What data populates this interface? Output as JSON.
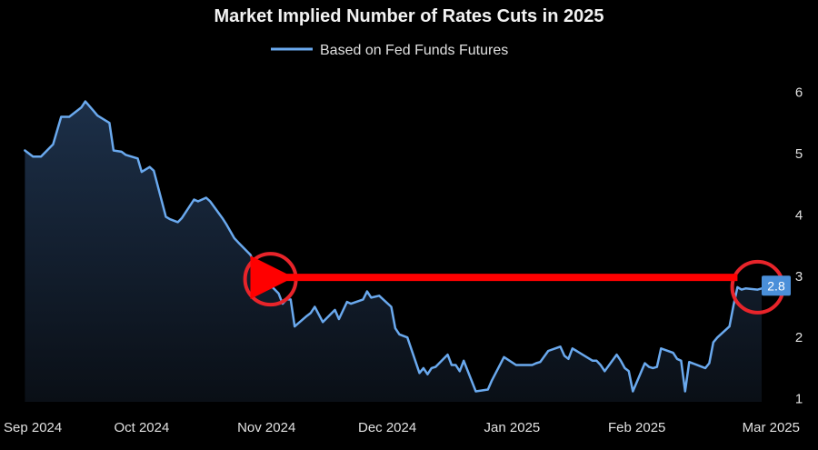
{
  "chart_data": {
    "type": "area",
    "title": "Market Implied Number of Rates Cuts in 2025",
    "xlabel": "",
    "ylabel": "",
    "x_tick_labels": [
      "Sep 2024",
      "Oct 2024",
      "Nov 2024",
      "Dec 2024",
      "Jan 2025",
      "Feb 2025",
      "Mar 2025"
    ],
    "y_ticks": [
      1,
      2,
      3,
      4,
      5,
      6
    ],
    "ylim": [
      0.95,
      6.2
    ],
    "grid": false,
    "y_axis_side": "right",
    "legend": {
      "position": "top-center"
    },
    "series": [
      {
        "name": "Based on Fed Funds Futures",
        "color": "#6aa9ee",
        "fill_top": "#1c2f48",
        "fill_bottom": "#0a0f16",
        "x": [
          "2024-09-02",
          "2024-09-04",
          "2024-09-06",
          "2024-09-09",
          "2024-09-11",
          "2024-09-13",
          "2024-09-16",
          "2024-09-17",
          "2024-09-19",
          "2024-09-20",
          "2024-09-23",
          "2024-09-24",
          "2024-09-26",
          "2024-09-27",
          "2024-09-30",
          "2024-10-01",
          "2024-10-03",
          "2024-10-04",
          "2024-10-07",
          "2024-10-08",
          "2024-10-10",
          "2024-10-11",
          "2024-10-14",
          "2024-10-15",
          "2024-10-17",
          "2024-10-18",
          "2024-10-21",
          "2024-10-22",
          "2024-10-24",
          "2024-10-25",
          "2024-10-28",
          "2024-10-29",
          "2024-10-30",
          "2024-10-31",
          "2024-11-01",
          "2024-11-04",
          "2024-11-05",
          "2024-11-06",
          "2024-11-07",
          "2024-11-08",
          "2024-11-11",
          "2024-11-12",
          "2024-11-13",
          "2024-11-15",
          "2024-11-18",
          "2024-11-19",
          "2024-11-21",
          "2024-11-22",
          "2024-11-25",
          "2024-11-26",
          "2024-11-27",
          "2024-11-29",
          "2024-12-02",
          "2024-12-03",
          "2024-12-04",
          "2024-12-06",
          "2024-12-09",
          "2024-12-10",
          "2024-12-11",
          "2024-12-12",
          "2024-12-13",
          "2024-12-16",
          "2024-12-17",
          "2024-12-18",
          "2024-12-19",
          "2024-12-20",
          "2024-12-23",
          "2024-12-26",
          "2024-12-27",
          "2024-12-30",
          "2025-01-02",
          "2025-01-03",
          "2025-01-06",
          "2025-01-07",
          "2025-01-08",
          "2025-01-10",
          "2025-01-13",
          "2025-01-14",
          "2025-01-15",
          "2025-01-16",
          "2025-01-17",
          "2025-01-21",
          "2025-01-22",
          "2025-01-23",
          "2025-01-24",
          "2025-01-27",
          "2025-01-28",
          "2025-01-29",
          "2025-01-30",
          "2025-01-31",
          "2025-02-03",
          "2025-02-04",
          "2025-02-05",
          "2025-02-06",
          "2025-02-07",
          "2025-02-10",
          "2025-02-11",
          "2025-02-12",
          "2025-02-13",
          "2025-02-14",
          "2025-02-18",
          "2025-02-19",
          "2025-02-20",
          "2025-02-21",
          "2025-02-24",
          "2025-02-25",
          "2025-02-26",
          "2025-02-27",
          "2025-02-28",
          "2025-03-03",
          "2025-03-04"
        ],
        "values": [
          5.05,
          4.95,
          4.95,
          5.15,
          5.6,
          5.6,
          5.75,
          5.85,
          5.7,
          5.62,
          5.5,
          5.05,
          5.03,
          4.98,
          4.92,
          4.7,
          4.78,
          4.72,
          3.97,
          3.93,
          3.88,
          3.95,
          4.25,
          4.22,
          4.28,
          4.22,
          3.95,
          3.85,
          3.62,
          3.55,
          3.35,
          3.2,
          3.05,
          2.97,
          2.92,
          2.72,
          2.55,
          2.62,
          2.62,
          2.18,
          2.35,
          2.4,
          2.5,
          2.25,
          2.45,
          2.3,
          2.58,
          2.55,
          2.62,
          2.75,
          2.65,
          2.68,
          2.5,
          2.15,
          2.05,
          2.0,
          1.42,
          1.5,
          1.4,
          1.5,
          1.52,
          1.72,
          1.55,
          1.55,
          1.45,
          1.62,
          1.12,
          1.15,
          1.3,
          1.68,
          1.55,
          1.55,
          1.55,
          1.58,
          1.6,
          1.78,
          1.85,
          1.7,
          1.65,
          1.82,
          1.78,
          1.62,
          1.62,
          1.55,
          1.45,
          1.72,
          1.62,
          1.5,
          1.45,
          1.12,
          1.58,
          1.52,
          1.5,
          1.52,
          1.82,
          1.75,
          1.65,
          1.62,
          1.12,
          1.6,
          1.5,
          1.58,
          1.92,
          2.0,
          2.18,
          2.52,
          2.82,
          2.78,
          2.8,
          2.78,
          2.8
        ],
        "last_value_label": "2.8"
      }
    ],
    "annotations": [
      {
        "type": "circle",
        "color": "#e8242a",
        "at_x": "2024-11-02",
        "at_y": 2.95
      },
      {
        "type": "circle",
        "color": "#e8242a",
        "at_x": "2025-03-03",
        "at_y": 2.82
      },
      {
        "type": "arrow",
        "color": "#ff0000",
        "from_x": "2025-02-26",
        "to_x": "2024-11-06",
        "at_y": 2.98
      }
    ]
  }
}
